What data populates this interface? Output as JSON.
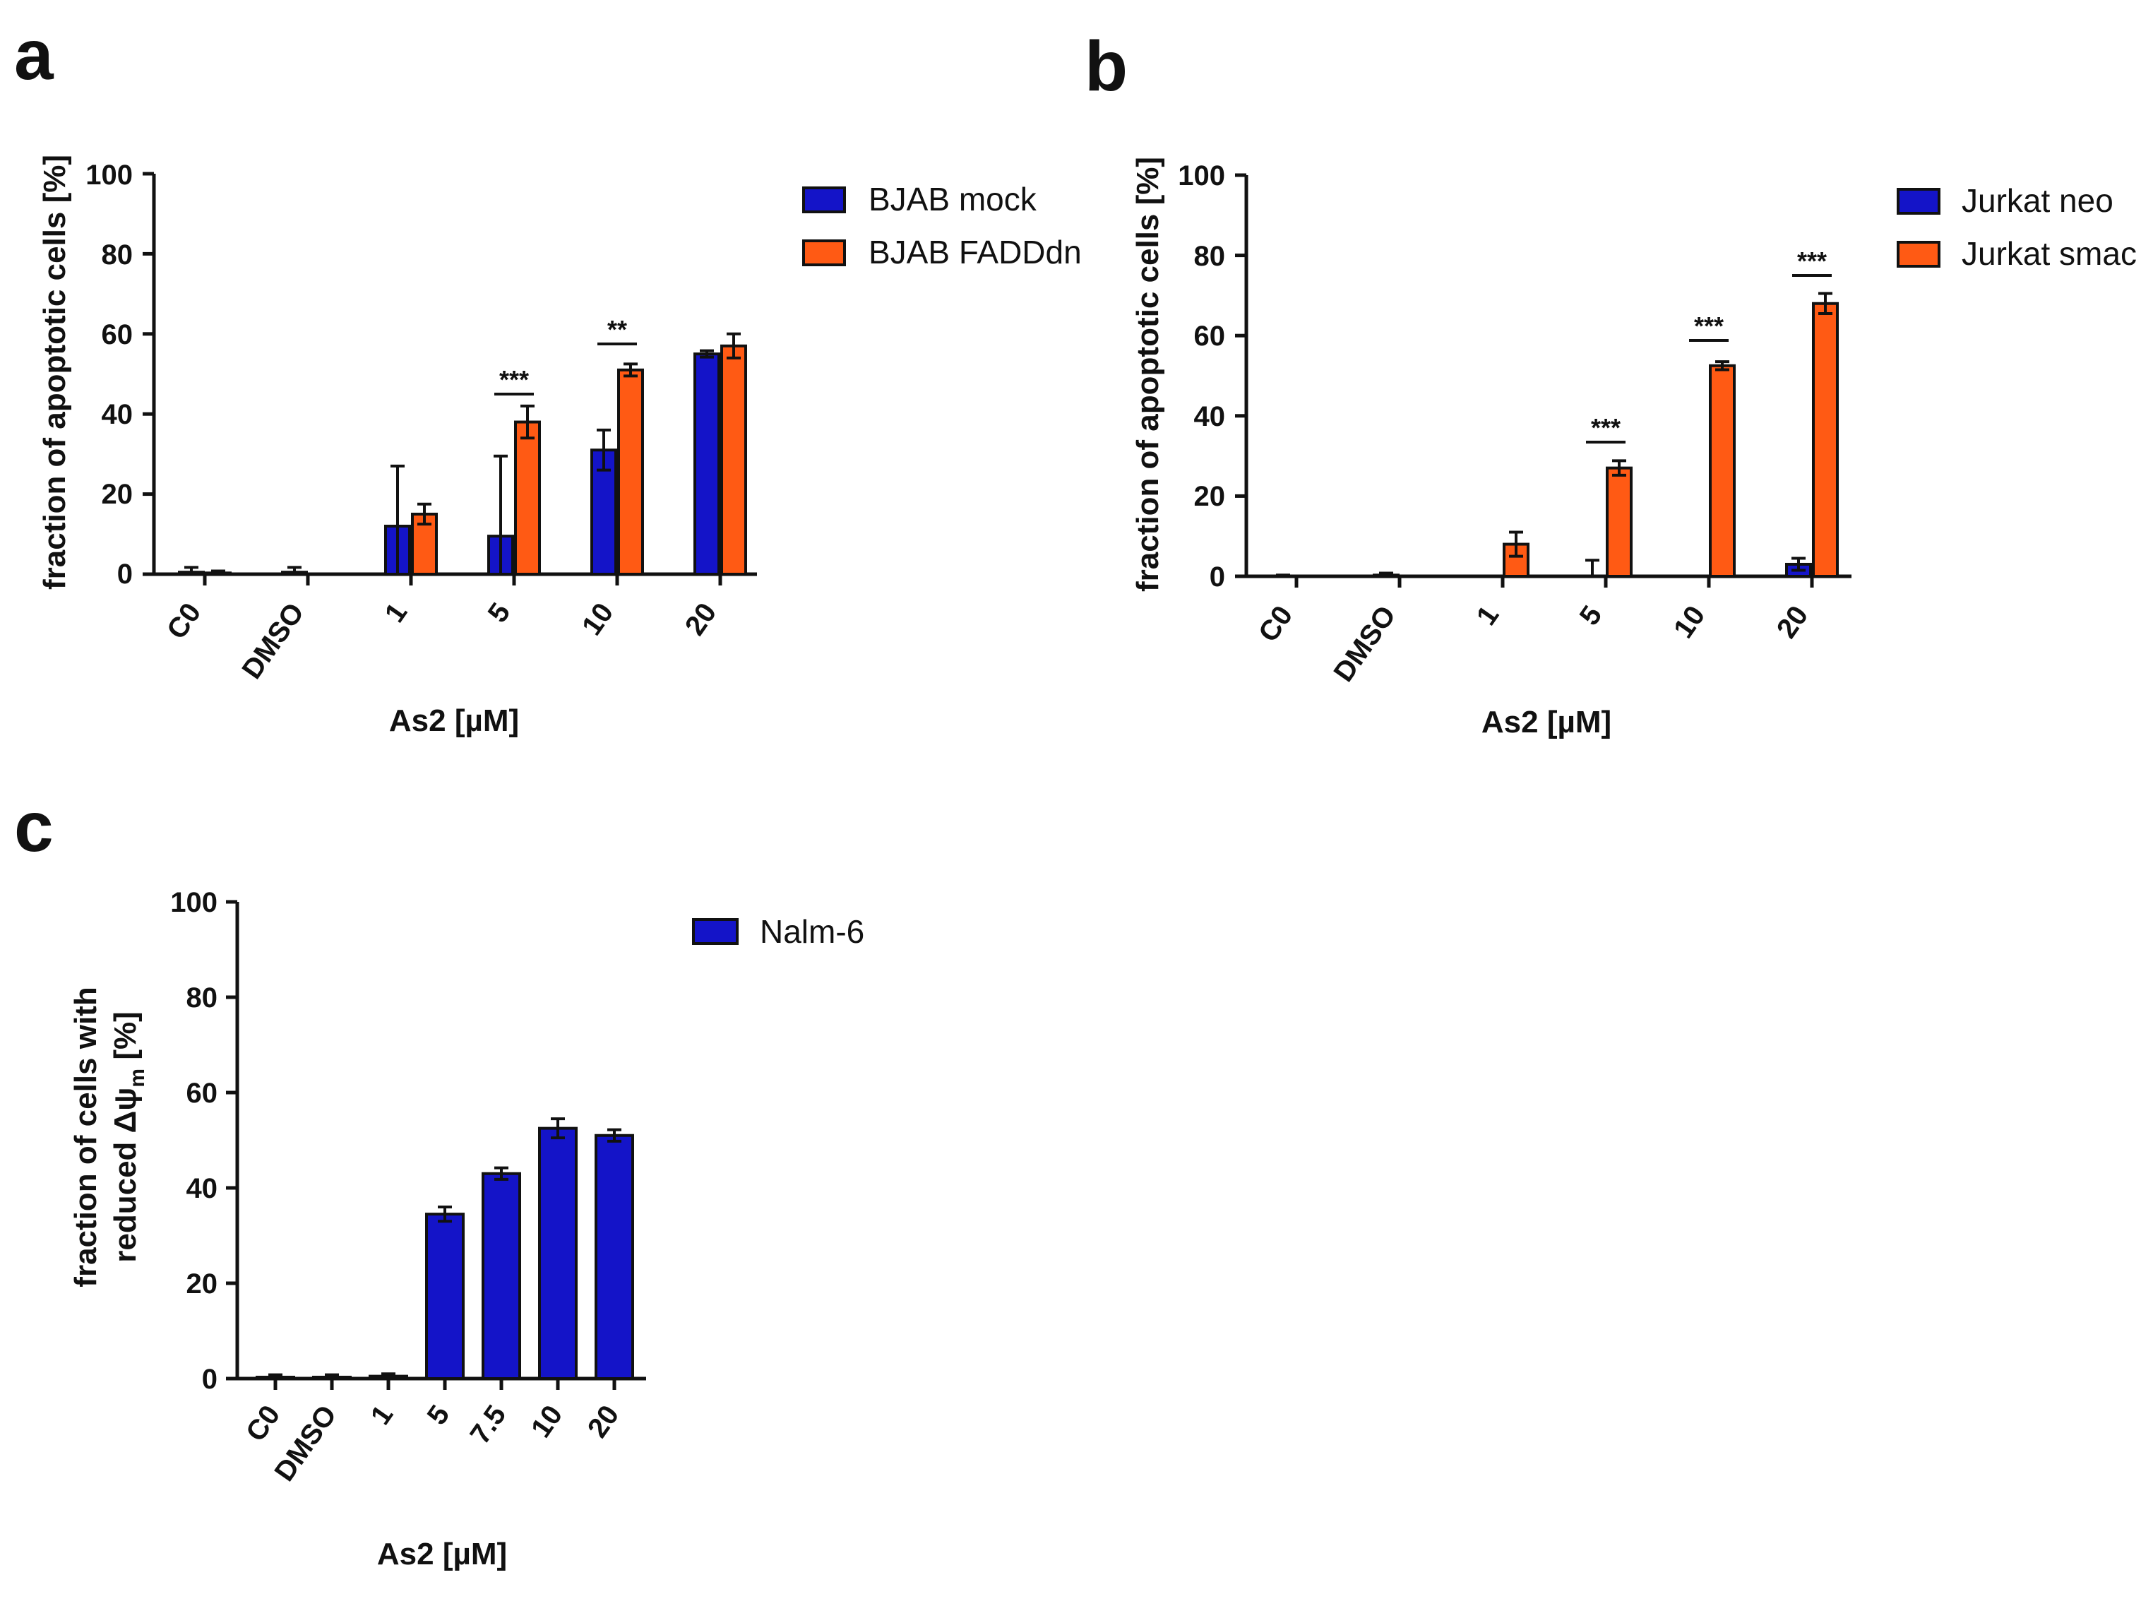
{
  "colors": {
    "mock": "#1414c8",
    "fadd": "#ff5a14",
    "axis": "#111111"
  },
  "chart_data": [
    {
      "panel": "a",
      "type": "bar",
      "categories": [
        "C0",
        "DMSO",
        "1",
        "5",
        "10",
        "20"
      ],
      "ylim": [
        0,
        100
      ],
      "yticks": [
        "0",
        "20",
        "40",
        "60",
        "80",
        "100"
      ],
      "ylabel": "fraction of apoptotic cells [%]",
      "xlabel": "As2 [µM]",
      "legend_position": "top-right",
      "series": [
        {
          "name": "BJAB mock",
          "color": "#1414c8",
          "values": [
            0.5,
            0.5,
            12,
            9.5,
            31,
            55
          ],
          "errors": [
            1.2,
            1.2,
            15,
            20,
            5,
            0.8
          ]
        },
        {
          "name": "BJAB FADDdn",
          "color": "#ff5a14",
          "values": [
            0.3,
            0,
            15,
            38,
            51,
            57
          ],
          "errors": [
            0.5,
            0,
            2.5,
            4,
            1.5,
            3
          ]
        }
      ],
      "significance": [
        {
          "category": "5",
          "label": "***"
        },
        {
          "category": "10",
          "label": "**"
        }
      ]
    },
    {
      "panel": "b",
      "type": "bar",
      "categories": [
        "C0",
        "DMSO",
        "1",
        "5",
        "10",
        "20"
      ],
      "ylim": [
        0,
        100
      ],
      "yticks": [
        "0",
        "20",
        "40",
        "60",
        "80",
        "100"
      ],
      "ylabel": "fraction of apoptotic cells [%]",
      "xlabel": "As2 [µM]",
      "legend_position": "top-right",
      "series": [
        {
          "name": "Jurkat neo",
          "color": "#1414c8",
          "values": [
            0,
            0.3,
            0,
            0,
            0,
            3
          ],
          "errors": [
            0.3,
            0.5,
            0,
            4,
            0,
            1.5
          ]
        },
        {
          "name": "Jurkat smac",
          "color": "#ff5a14",
          "values": [
            0,
            0,
            8,
            27,
            52.5,
            68
          ],
          "errors": [
            0,
            0,
            3,
            1.8,
            1,
            2.5
          ]
        }
      ],
      "significance": [
        {
          "category": "5",
          "label": "***"
        },
        {
          "category": "10",
          "label": "***"
        },
        {
          "category": "20",
          "label": "***"
        }
      ]
    },
    {
      "panel": "c",
      "type": "bar",
      "categories": [
        "C0",
        "DMSO",
        "1",
        "5",
        "7.5",
        "10",
        "20"
      ],
      "ylim": [
        0,
        100
      ],
      "yticks": [
        "0",
        "20",
        "40",
        "60",
        "80",
        "100"
      ],
      "ylabel_line1": "fraction of cells with",
      "ylabel_line2": "reduced Δψ",
      "ylabel_sub": "m",
      "ylabel_unit": " [%]",
      "xlabel": "As2 [µM]",
      "legend_position": "top-right",
      "series": [
        {
          "name": "Nalm-6",
          "color": "#1414c8",
          "values": [
            0.3,
            0.3,
            0.5,
            34.5,
            43,
            52.5,
            51
          ],
          "errors": [
            0.5,
            0.5,
            0.5,
            1.5,
            1.2,
            2,
            1.2
          ]
        }
      ],
      "significance": []
    }
  ]
}
